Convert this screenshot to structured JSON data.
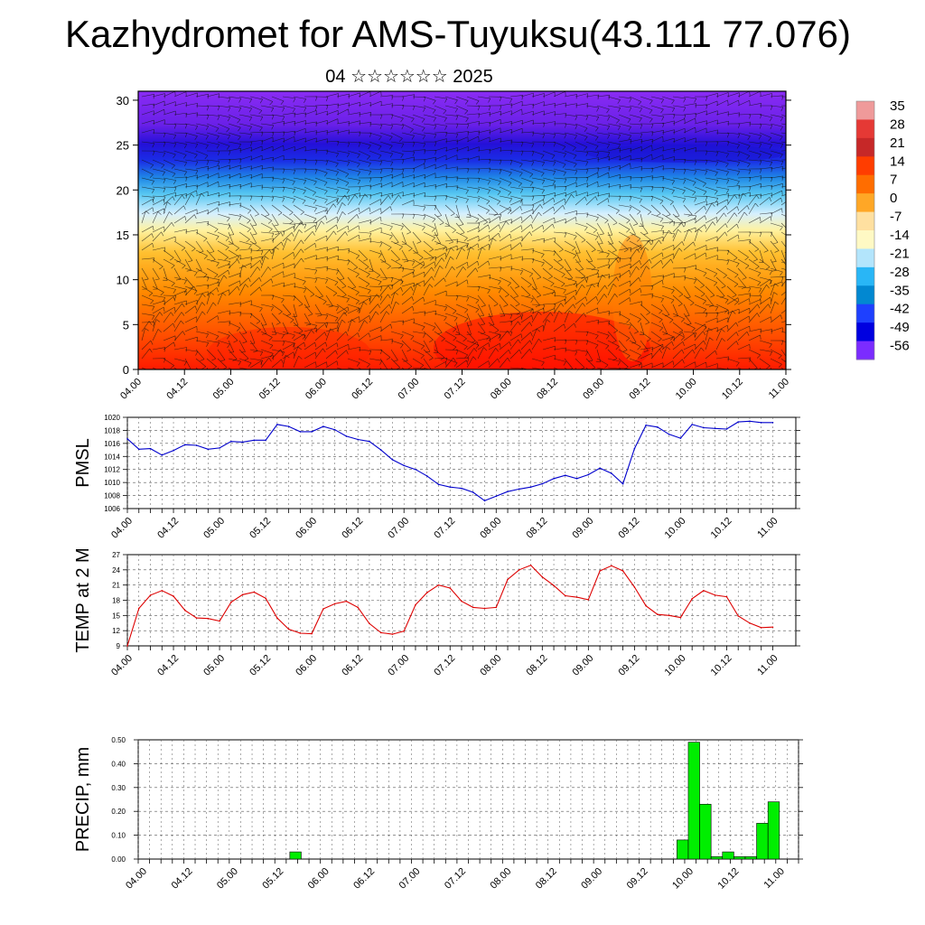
{
  "header": {
    "title": "Kazhydromet for AMS-Tuyuksu(43.111 77.076)",
    "subtitle": "04 ☆☆☆☆☆☆ 2025"
  },
  "chart_data": [
    {
      "type": "heatmap",
      "name": "cross-section",
      "x_ticklabels": [
        "04.00",
        "04.12",
        "05.00",
        "05.12",
        "06.00",
        "06.12",
        "07.00",
        "07.12",
        "08.00",
        "08.12",
        "09.00",
        "09.12",
        "10.00",
        "10.12",
        "11.00"
      ],
      "y_ticks": [
        0,
        5,
        10,
        15,
        20,
        25,
        30
      ],
      "ylim": [
        0,
        31
      ],
      "colorbar": {
        "labels": [
          "35",
          "28",
          "21",
          "14",
          "7",
          "0",
          "-7",
          "-14",
          "-21",
          "-28",
          "-35",
          "-42",
          "-49",
          "-56"
        ],
        "colors": [
          "#ef9a9a",
          "#e53935",
          "#c62828",
          "#ff3d00",
          "#ff6d00",
          "#ffa726",
          "#ffe0a0",
          "#fff9c4",
          "#b3e5fc",
          "#29b6f6",
          "#0288d1",
          "#1e40ff",
          "#0000e0",
          "#7b2cff"
        ]
      },
      "overlay": "wind barbs"
    },
    {
      "type": "line",
      "name": "pmsl",
      "ylabel": "PMSL",
      "ylim": [
        1006,
        1020
      ],
      "y_ticks": [
        1006,
        1008,
        1010,
        1012,
        1014,
        1016,
        1018,
        1020
      ],
      "x_ticklabels": [
        "04.00",
        "04.12",
        "05.00",
        "05.12",
        "06.00",
        "06.12",
        "07.00",
        "07.12",
        "08.00",
        "08.12",
        "09.00",
        "09.12",
        "10.00",
        "10.12",
        "11.00"
      ],
      "color": "#0000cc",
      "values": [
        1016.7,
        1015.1,
        1015.2,
        1014.2,
        1014.9,
        1015.8,
        1015.7,
        1015.1,
        1015.3,
        1016.3,
        1016.2,
        1016.5,
        1016.5,
        1018.9,
        1018.6,
        1017.8,
        1017.8,
        1018.6,
        1018.1,
        1017.1,
        1016.6,
        1016.3,
        1015.0,
        1013.5,
        1012.6,
        1012.0,
        1011.0,
        1009.7,
        1009.3,
        1009.1,
        1008.5,
        1007.2,
        1007.9,
        1008.6,
        1009.0,
        1009.3,
        1009.8,
        1010.6,
        1011.1,
        1010.6,
        1011.2,
        1012.2,
        1011.4,
        1009.8,
        1015.2,
        1018.8,
        1018.5,
        1017.4,
        1016.8,
        1018.9,
        1018.4,
        1018.3,
        1018.2,
        1019.3,
        1019.4,
        1019.2,
        1019.2
      ]
    },
    {
      "type": "line",
      "name": "temp",
      "ylabel": "TEMP at 2 M",
      "ylim": [
        9,
        27
      ],
      "y_ticks": [
        9,
        12,
        15,
        18,
        21,
        24,
        27
      ],
      "x_ticklabels": [
        "04.00",
        "04.12",
        "05.00",
        "05.12",
        "06.00",
        "06.12",
        "07.00",
        "07.12",
        "08.00",
        "08.12",
        "09.00",
        "09.12",
        "10.00",
        "10.12",
        "11.00"
      ],
      "color": "#dd0000",
      "values": [
        9.0,
        16.4,
        19.0,
        19.9,
        18.8,
        16.0,
        14.5,
        14.4,
        13.9,
        17.6,
        19.1,
        19.6,
        18.4,
        14.5,
        12.3,
        11.5,
        11.4,
        16.3,
        17.3,
        17.8,
        16.6,
        13.4,
        11.6,
        11.3,
        11.9,
        17.1,
        19.5,
        21.0,
        20.4,
        17.8,
        16.6,
        16.4,
        16.6,
        22.1,
        24.0,
        24.9,
        22.6,
        20.9,
        18.9,
        18.6,
        18.1,
        23.8,
        24.8,
        23.8,
        20.6,
        16.9,
        15.2,
        15.0,
        14.6,
        18.3,
        19.9,
        19.0,
        18.7,
        14.9,
        13.5,
        12.6,
        12.7
      ]
    },
    {
      "type": "bar",
      "name": "precip",
      "ylabel": "PRECIP, mm",
      "ylim": [
        0,
        0.5
      ],
      "y_ticks": [
        "0.00",
        "0.10",
        "0.20",
        "0.30",
        "0.40",
        "0.50"
      ],
      "x_ticklabels": [
        "04.00",
        "04.12",
        "05.00",
        "05.12",
        "06.00",
        "06.12",
        "07.00",
        "07.12",
        "08.00",
        "08.12",
        "09.00",
        "09.12",
        "10.00",
        "10.12",
        "11.00"
      ],
      "color": "#00ee00",
      "bars": [
        {
          "x_index": 13.5,
          "value": 0.03
        },
        {
          "x_index": 47.5,
          "value": 0.08
        },
        {
          "x_index": 48.5,
          "value": 0.49
        },
        {
          "x_index": 49.5,
          "value": 0.23
        },
        {
          "x_index": 50.5,
          "value": 0.01
        },
        {
          "x_index": 51.5,
          "value": 0.03
        },
        {
          "x_index": 52.5,
          "value": 0.01
        },
        {
          "x_index": 53.5,
          "value": 0.01
        },
        {
          "x_index": 54.5,
          "value": 0.15
        },
        {
          "x_index": 55.5,
          "value": 0.24
        }
      ]
    }
  ]
}
